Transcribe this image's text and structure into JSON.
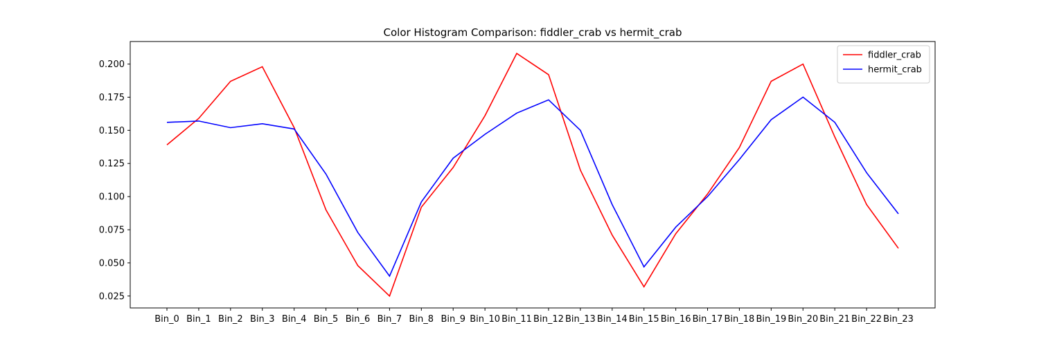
{
  "chart_data": {
    "type": "line",
    "title": "Color Histogram Comparison: fiddler_crab vs hermit_crab",
    "xlabel": "",
    "ylabel": "",
    "categories": [
      "Bin_0",
      "Bin_1",
      "Bin_2",
      "Bin_3",
      "Bin_4",
      "Bin_5",
      "Bin_6",
      "Bin_7",
      "Bin_8",
      "Bin_9",
      "Bin_10",
      "Bin_11",
      "Bin_12",
      "Bin_13",
      "Bin_14",
      "Bin_15",
      "Bin_16",
      "Bin_17",
      "Bin_18",
      "Bin_19",
      "Bin_20",
      "Bin_21",
      "Bin_22",
      "Bin_23"
    ],
    "ylim": [
      0.016,
      0.217
    ],
    "yticks": [
      0.025,
      0.05,
      0.075,
      0.1,
      0.125,
      0.15,
      0.175,
      0.2
    ],
    "ytick_labels": [
      "0.025",
      "0.050",
      "0.075",
      "0.100",
      "0.125",
      "0.150",
      "0.175",
      "0.200"
    ],
    "grid": false,
    "legend_position": "top-right",
    "series": [
      {
        "name": "fiddler_crab",
        "color": "#ff0000",
        "values": [
          0.139,
          0.159,
          0.187,
          0.198,
          0.152,
          0.09,
          0.048,
          0.025,
          0.092,
          0.122,
          0.161,
          0.208,
          0.192,
          0.12,
          0.071,
          0.032,
          0.072,
          0.102,
          0.137,
          0.187,
          0.2,
          0.145,
          0.094,
          0.061
        ]
      },
      {
        "name": "hermit_crab",
        "color": "#0000ff",
        "values": [
          0.156,
          0.157,
          0.152,
          0.155,
          0.151,
          0.117,
          0.073,
          0.04,
          0.096,
          0.129,
          0.147,
          0.163,
          0.173,
          0.15,
          0.094,
          0.047,
          0.077,
          0.1,
          0.128,
          0.158,
          0.175,
          0.156,
          0.118,
          0.087
        ]
      }
    ]
  }
}
